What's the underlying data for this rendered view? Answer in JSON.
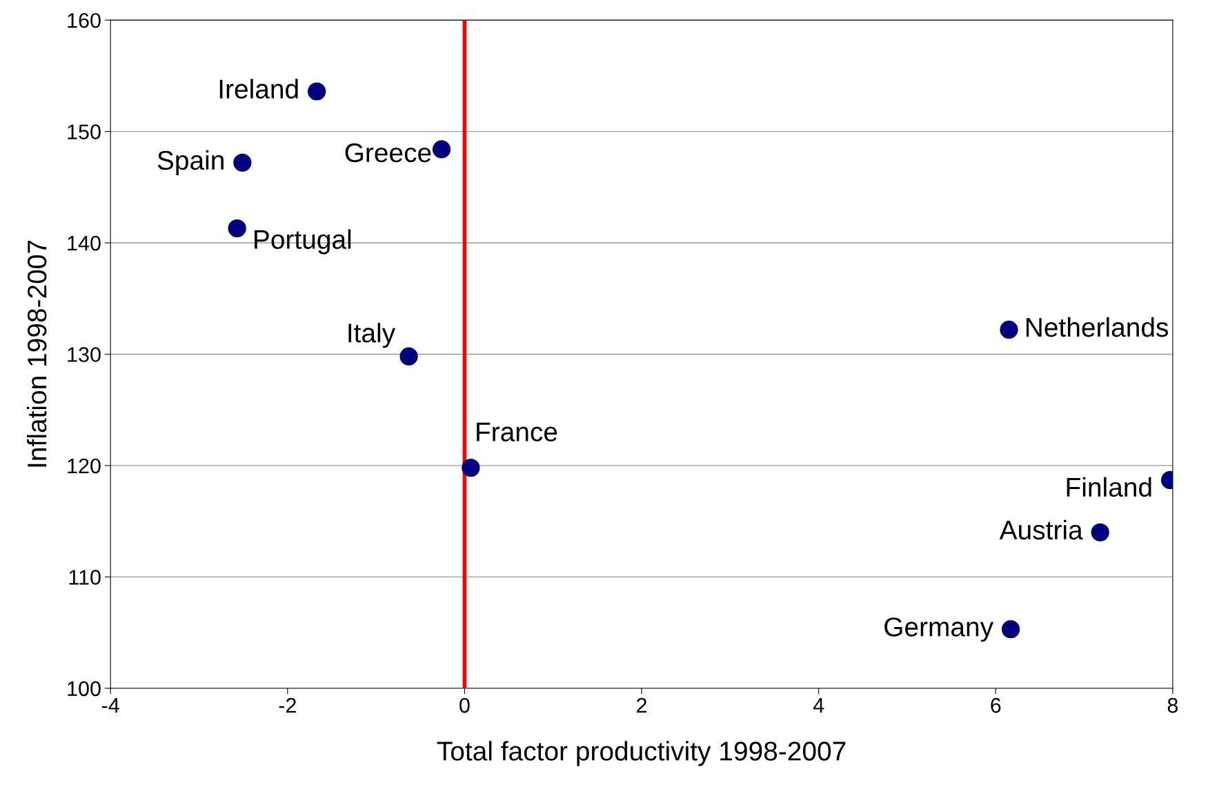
{
  "chart_data": {
    "type": "scatter",
    "xlabel": "Total factor productivity 1998-2007",
    "ylabel": "Inflation 1998-2007",
    "x": [
      -1.67,
      -2.51,
      -0.26,
      -2.57,
      -0.63,
      0.07,
      6.15,
      7.97,
      7.18,
      6.17
    ],
    "series": [
      {
        "color": "#000080",
        "values": [
          153.6,
          147.2,
          148.4,
          141.3,
          129.8,
          119.8,
          132.2,
          118.7,
          114.0,
          105.3
        ]
      }
    ],
    "annotations": [
      {
        "text": "Ireland",
        "x": -1.67,
        "y": 153.6
      },
      {
        "text": "Spain",
        "x": -2.51,
        "y": 147.2
      },
      {
        "text": "Greece",
        "x": -0.26,
        "y": 148.4
      },
      {
        "text": "Portugal",
        "x": -2.57,
        "y": 141.3
      },
      {
        "text": "Italy",
        "x": -0.63,
        "y": 129.8
      },
      {
        "text": "France",
        "x": 0.07,
        "y": 119.8
      },
      {
        "text": "Netherlands",
        "x": 6.15,
        "y": 132.2
      },
      {
        "text": "Finland",
        "x": 7.97,
        "y": 118.7
      },
      {
        "text": "Austria",
        "x": 7.18,
        "y": 114.0
      },
      {
        "text": "Germany",
        "x": 6.17,
        "y": 105.3
      }
    ],
    "ref_lines": [
      {
        "axis": "x",
        "value": 0,
        "color": "#ff0000"
      }
    ],
    "xlim": [
      -4,
      8
    ],
    "ylim": [
      100,
      160
    ],
    "xticks": [
      -4,
      -2,
      0,
      2,
      4,
      6,
      8
    ],
    "yticks": [
      100,
      110,
      120,
      130,
      140,
      150,
      160
    ],
    "grid": "y",
    "marker": "circle",
    "legend": false
  }
}
